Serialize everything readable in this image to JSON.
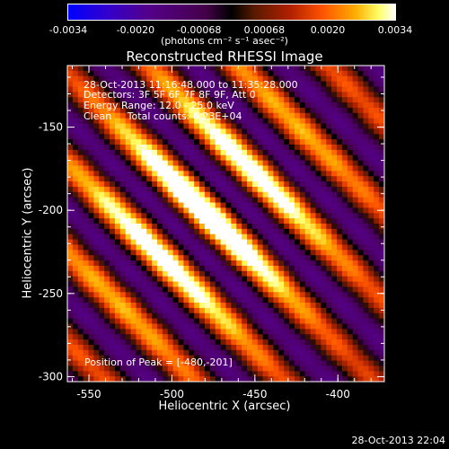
{
  "chart_data": {
    "type": "heatmap",
    "title": "Reconstructed RHESSI Image",
    "xlabel": "Heliocentric X (arcsec)",
    "ylabel": "Heliocentric Y (arcsec)",
    "xlim": [
      -563,
      -372
    ],
    "ylim": [
      -303,
      -113
    ],
    "xticks": [
      -550,
      -500,
      -450,
      -400
    ],
    "yticks": [
      -150,
      -200,
      -250,
      -300
    ],
    "colorbar": {
      "min": -0.0034,
      "max": 0.0034,
      "ticks": [
        "-0.0034",
        "-0.0020",
        "-0.00068",
        "0.00068",
        "0.0020",
        "0.0034"
      ],
      "units": "(photons cm⁻² s⁻¹ asec⁻²)"
    },
    "info_lines": [
      "28-Oct-2013 11:16:48.000 to 11:35:28.000",
      "Detectors: 3F 5F 6F 7F 8F 9F, Att 0",
      "Energy Range: 12.0 - 25.0 keV",
      "Clean     Total counts: 6.23E+04"
    ],
    "peak_label": "Position of Peak = [-480,-201]",
    "peak": {
      "x": -480,
      "y": -201
    }
  },
  "timestamp": "28-Oct-2013 22:04"
}
